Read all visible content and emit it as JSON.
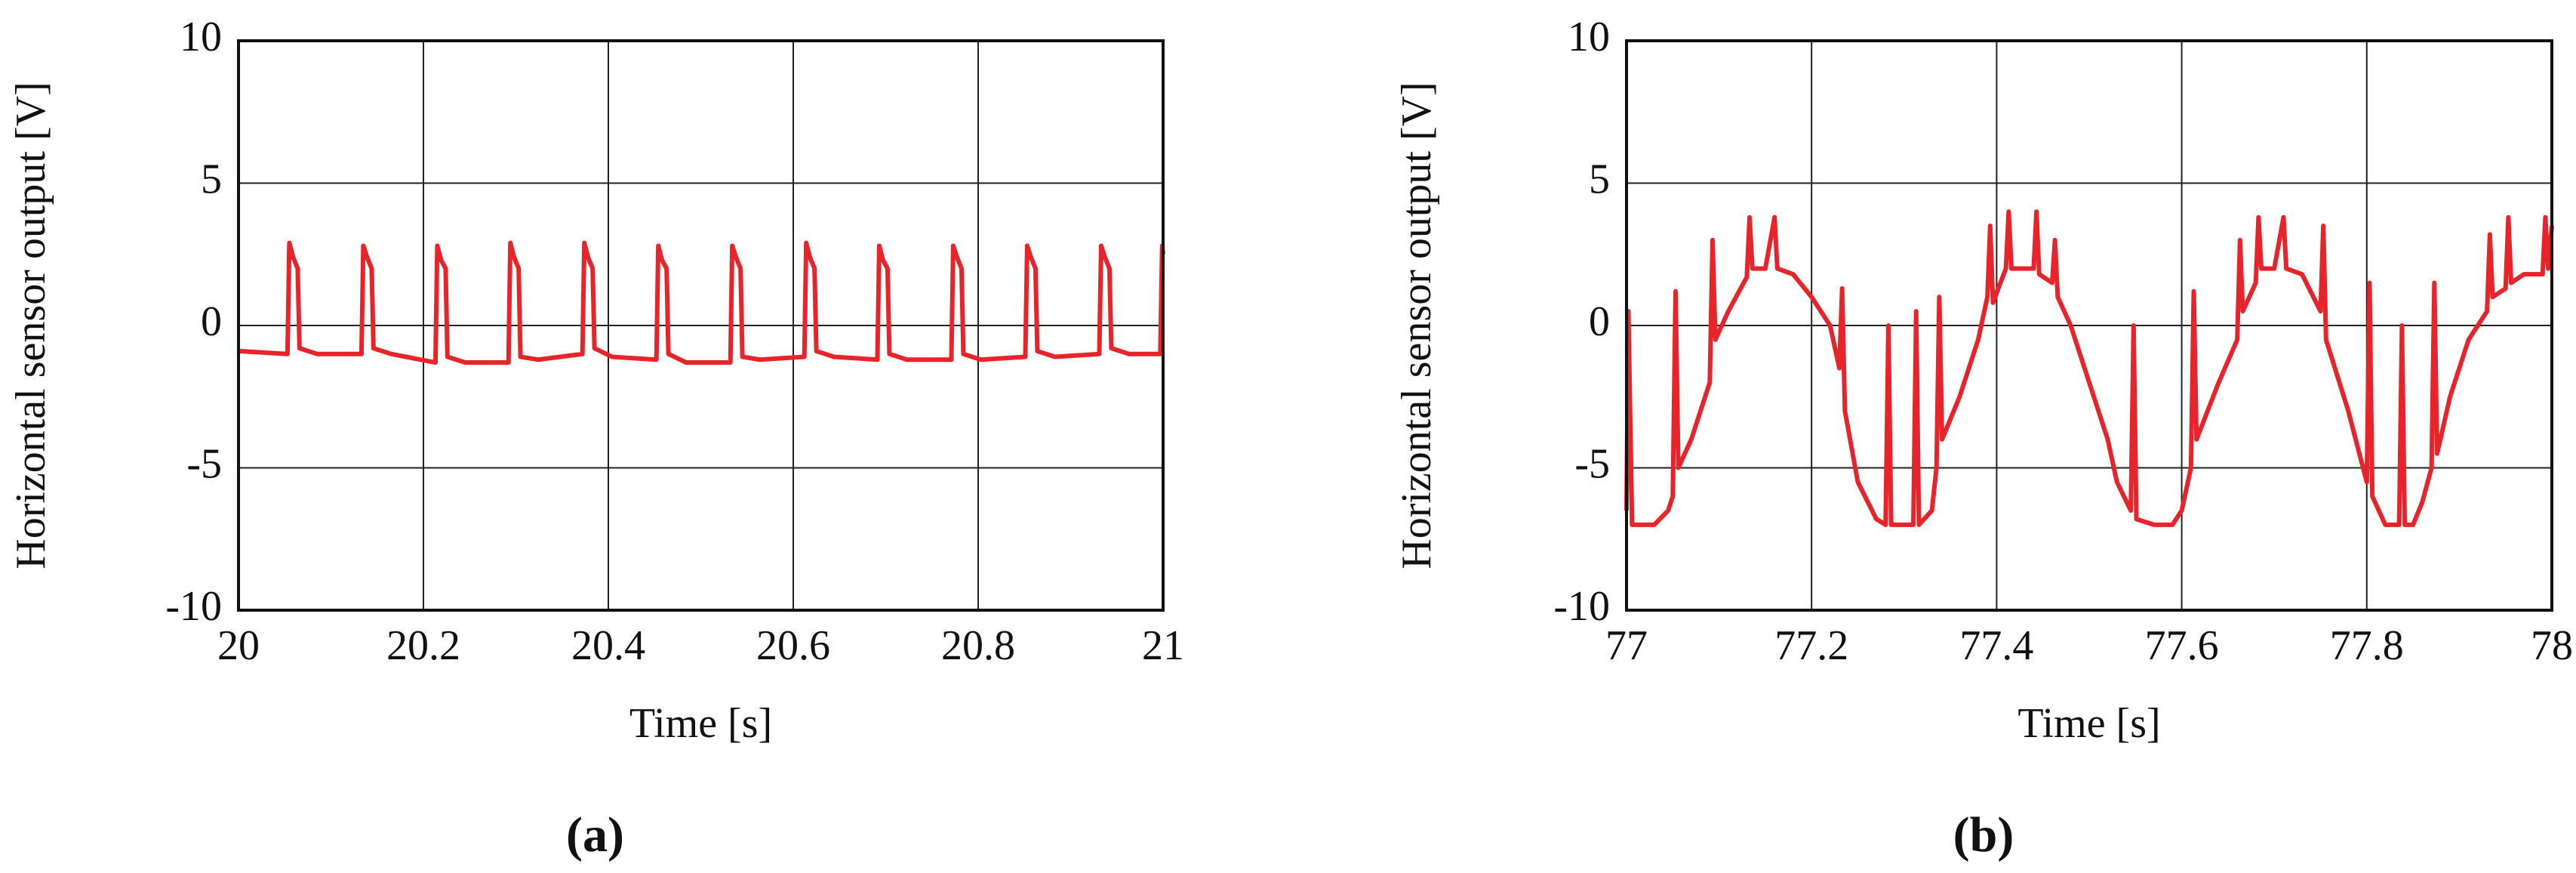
{
  "chart_data": [
    {
      "type": "line",
      "title": "(a)",
      "xlabel": "Time [s]",
      "ylabel": "Horizontal sensor output [V]",
      "xlim": [
        20,
        21
      ],
      "xticks": [
        20,
        20.2,
        20.4,
        20.6,
        20.8,
        21
      ],
      "ylim": [
        -10,
        10
      ],
      "yticks": [
        10,
        5,
        0,
        -5,
        -10
      ],
      "grid": true,
      "color": "#e8232a",
      "x": [
        20,
        20.053,
        20.055,
        20.059,
        20.064,
        20.066,
        20.085,
        20.133,
        20.135,
        20.139,
        20.144,
        20.146,
        20.165,
        20.213,
        20.215,
        20.219,
        20.224,
        20.226,
        20.245,
        20.292,
        20.294,
        20.298,
        20.303,
        20.305,
        20.324,
        20.372,
        20.374,
        20.378,
        20.383,
        20.385,
        20.404,
        20.452,
        20.454,
        20.458,
        20.463,
        20.465,
        20.484,
        20.532,
        20.534,
        20.538,
        20.543,
        20.545,
        20.564,
        20.612,
        20.614,
        20.618,
        20.623,
        20.625,
        20.644,
        20.691,
        20.693,
        20.697,
        20.702,
        20.704,
        20.723,
        20.771,
        20.773,
        20.777,
        20.782,
        20.784,
        20.803,
        20.851,
        20.853,
        20.857,
        20.862,
        20.864,
        20.883,
        20.931,
        20.933,
        20.937,
        20.942,
        20.944,
        20.963,
        20.997,
        20.999,
        21
      ],
      "values": [
        -0.9,
        -1,
        2.9,
        2.4,
        2,
        -0.8,
        -1,
        -1,
        2.8,
        2.4,
        2,
        -0.8,
        -1,
        -1.3,
        2.8,
        2.3,
        2,
        -1.1,
        -1.3,
        -1.3,
        2.9,
        2.4,
        2,
        -1.1,
        -1.2,
        -1,
        2.9,
        2.4,
        2,
        -0.8,
        -1.1,
        -1.2,
        2.8,
        2.3,
        2,
        -1,
        -1.3,
        -1.3,
        2.8,
        2.4,
        2,
        -1.1,
        -1.2,
        -1.1,
        2.9,
        2.4,
        2,
        -0.9,
        -1.1,
        -1.2,
        2.8,
        2.3,
        2,
        -1,
        -1.2,
        -1.2,
        2.8,
        2.4,
        2,
        -1,
        -1.2,
        -1.1,
        2.8,
        2.4,
        2,
        -0.9,
        -1.1,
        -1,
        2.8,
        2.4,
        2,
        -0.8,
        -1,
        -1,
        2.8,
        2.5
      ]
    },
    {
      "type": "line",
      "title": "(b)",
      "xlabel": "Time [s]",
      "ylabel": "Horizontal sensor output [V]",
      "xlim": [
        77,
        78
      ],
      "xticks": [
        77,
        77.2,
        77.4,
        77.6,
        77.8,
        78
      ],
      "ylim": [
        -10,
        10
      ],
      "yticks": [
        10,
        5,
        0,
        -5,
        -10
      ],
      "grid": true,
      "color": "#e8232a",
      "x": [
        77,
        77.002,
        77.006,
        77.03,
        77.045,
        77.05,
        77.053,
        77.056,
        77.07,
        77.09,
        77.093,
        77.096,
        77.11,
        77.13,
        77.133,
        77.136,
        77.15,
        77.16,
        77.163,
        77.18,
        77.2,
        77.22,
        77.23,
        77.233,
        77.236,
        77.25,
        77.27,
        77.28,
        77.283,
        77.286,
        77.31,
        77.313,
        77.316,
        77.33,
        77.335,
        77.338,
        77.341,
        77.36,
        77.38,
        77.39,
        77.393,
        77.396,
        77.41,
        77.413,
        77.416,
        77.44,
        77.443,
        77.446,
        77.46,
        77.463,
        77.466,
        77.48,
        77.5,
        77.52,
        77.53,
        77.545,
        77.548,
        77.551,
        77.57,
        77.59,
        77.6,
        77.61,
        77.613,
        77.616,
        77.64,
        77.66,
        77.663,
        77.666,
        77.68,
        77.683,
        77.686,
        77.7,
        77.71,
        77.713,
        77.73,
        77.75,
        77.753,
        77.756,
        77.78,
        77.8,
        77.803,
        77.806,
        77.82,
        77.835,
        77.838,
        77.841,
        77.85,
        77.86,
        77.87,
        77.873,
        77.876,
        77.89,
        77.91,
        77.93,
        77.933,
        77.936,
        77.95,
        77.953,
        77.956,
        77.97,
        77.99,
        77.993,
        77.996,
        78
      ],
      "values": [
        -6.5,
        0.5,
        -7,
        -7,
        -6.5,
        -6,
        1.2,
        -5,
        -4,
        -2,
        3,
        -0.5,
        0.5,
        1.7,
        3.8,
        2,
        2,
        3.8,
        2,
        1.8,
        1,
        0,
        -1.5,
        1.3,
        -3,
        -5.5,
        -6.8,
        -7,
        0,
        -7,
        -7,
        0.5,
        -7,
        -6.5,
        -5,
        1,
        -4,
        -2.5,
        -0.5,
        1,
        3.5,
        0.8,
        2,
        4,
        2,
        2,
        4,
        1.8,
        1.5,
        3,
        1,
        0,
        -2,
        -4,
        -5.5,
        -6.5,
        0,
        -6.8,
        -7,
        -7,
        -6.5,
        -5,
        1.2,
        -4,
        -2,
        -0.5,
        3,
        0.5,
        1.5,
        3.8,
        2,
        2,
        3.8,
        2,
        1.8,
        0.5,
        3.5,
        -0.5,
        -3,
        -5.5,
        1.5,
        -6,
        -7,
        -7,
        0,
        -7,
        -7,
        -6.2,
        -5,
        1.5,
        -4.5,
        -2.5,
        -0.5,
        0.5,
        3.2,
        1,
        1.3,
        3.8,
        1.5,
        1.8,
        1.8,
        3.8,
        2,
        3.5
      ]
    }
  ]
}
